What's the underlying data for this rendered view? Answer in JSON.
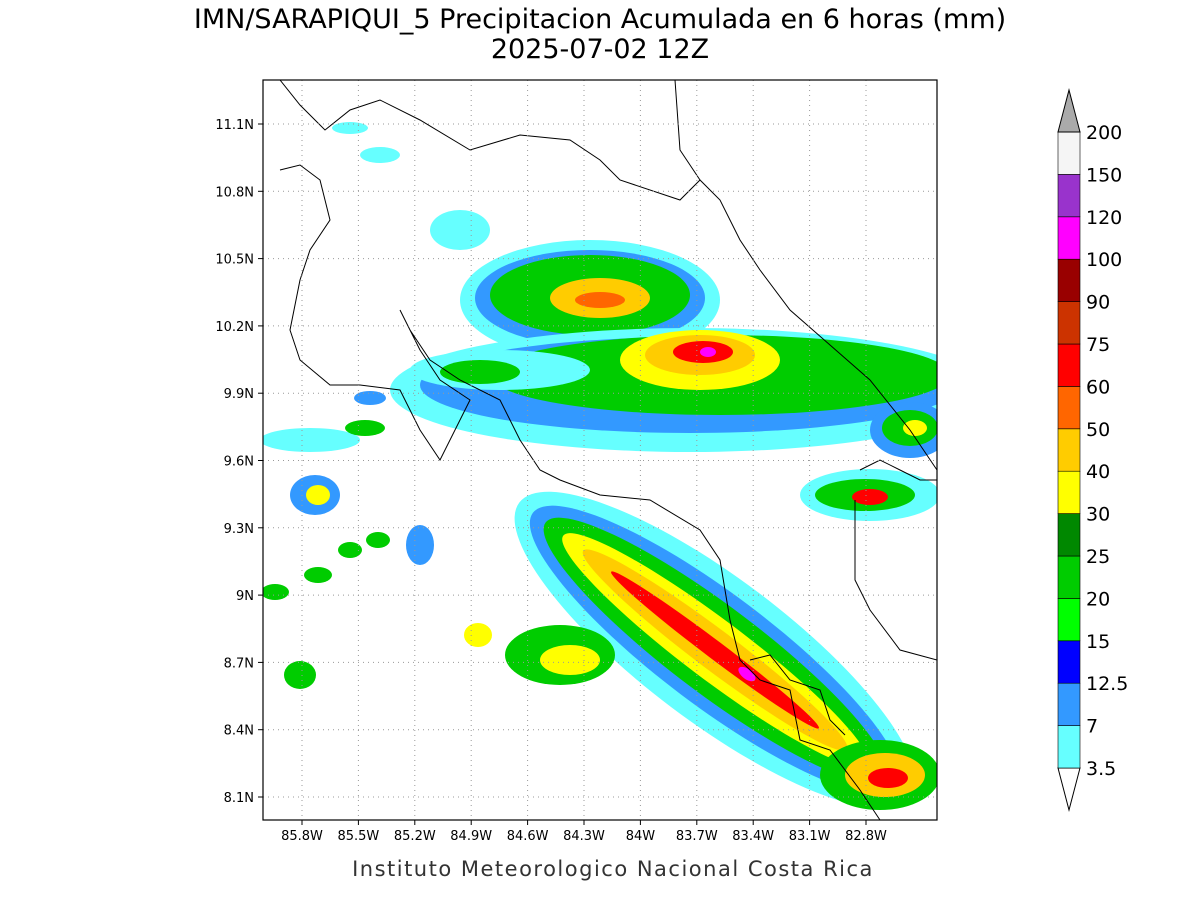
{
  "header": {
    "title": "IMN/SARAPIQUI_5 Precipitacion Acumulada en 6 horas (mm)",
    "subtitle": "2025-07-02 12Z"
  },
  "map": {
    "lat_ticks": [
      "11.1N",
      "10.8N",
      "10.5N",
      "10.2N",
      "9.9N",
      "9.6N",
      "9.3N",
      "9N",
      "8.7N",
      "8.4N",
      "8.1N"
    ],
    "lon_ticks": [
      "85.8W",
      "85.5W",
      "85.2W",
      "84.9W",
      "84.6W",
      "84.3W",
      "84W",
      "83.7W",
      "83.4W",
      "83.1W",
      "82.8W"
    ]
  },
  "colorbar": {
    "levels": [
      3.5,
      7,
      12.5,
      15,
      20,
      25,
      30,
      40,
      50,
      60,
      75,
      90,
      100,
      120,
      150,
      200
    ],
    "colors": [
      "#ffffff",
      "#66ffff",
      "#3399ff",
      "#0000ff",
      "#00ff00",
      "#00cc00",
      "#008800",
      "#ffff00",
      "#ffcc00",
      "#ff6600",
      "#ff0000",
      "#cc3300",
      "#990000",
      "#ff00ff",
      "#9933cc",
      "#f5f5f5",
      "#aaaaaa"
    ]
  },
  "footer": "Instituto Meteorologico Nacional Costa Rica"
}
